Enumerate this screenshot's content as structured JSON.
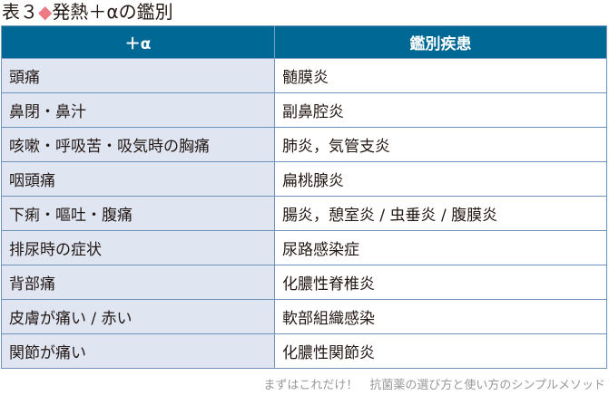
{
  "title": {
    "prefix": "表３",
    "marker": "◆",
    "text": "発熱＋αの鑑別"
  },
  "table": {
    "headers": [
      "＋α",
      "鑑別疾患"
    ],
    "rows": [
      [
        "頭痛",
        "髄膜炎"
      ],
      [
        "鼻閉・鼻汁",
        "副鼻腔炎"
      ],
      [
        "咳嗽・呼吸苦・吸気時の胸痛",
        "肺炎，気管支炎"
      ],
      [
        "咽頭痛",
        "扁桃腺炎"
      ],
      [
        "下痢・嘔吐・腹痛",
        "腸炎，憩室炎 / 虫垂炎 / 腹膜炎"
      ],
      [
        "排尿時の症状",
        "尿路感染症"
      ],
      [
        "背部痛",
        "化膿性脊椎炎"
      ],
      [
        "皮膚が痛い / 赤い",
        "軟部組織感染"
      ],
      [
        "関節が痛い",
        "化膿性関節炎"
      ]
    ]
  },
  "footer": "まずはこれだけ！　抗菌薬の選び方と使い方のシンプルメソッド",
  "colors": {
    "header": "#006894",
    "left_column": "#dfe6f1",
    "marker": "#ec7a85"
  }
}
